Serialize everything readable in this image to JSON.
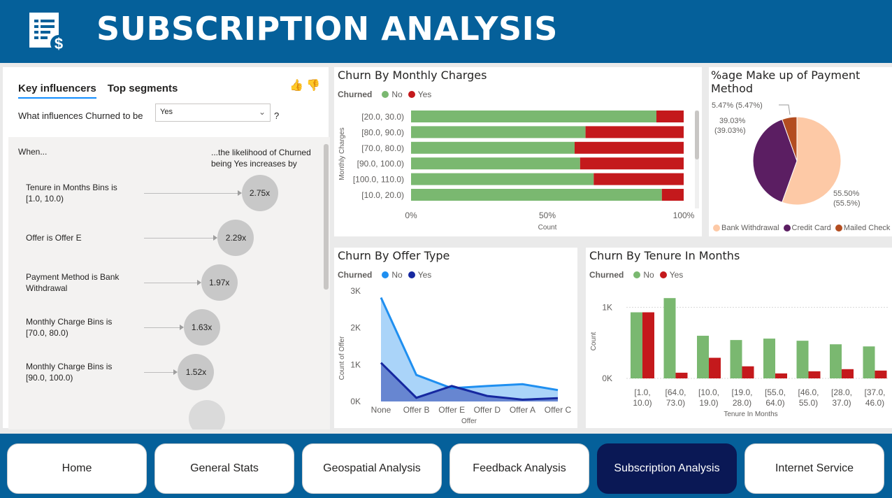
{
  "header": {
    "title": "SUBSCRIPTION ANALYSIS",
    "logo_icon": "receipt-dollar-icon"
  },
  "key_influencers": {
    "tabs": [
      {
        "label": "Key influencers",
        "active": true
      },
      {
        "label": "Top segments",
        "active": false
      }
    ],
    "question": "What influences Churned to be",
    "selected_value": "Yes",
    "question_mark": "?",
    "col_when": "When...",
    "col_likelihood": "...the likelihood of Churned being Yes increases by",
    "rows": [
      {
        "label": "Tenure in Months Bins is [1.0, 10.0)",
        "value": "2.75x",
        "factor": 2.75
      },
      {
        "label": "Offer is Offer E",
        "value": "2.29x",
        "factor": 2.29
      },
      {
        "label": "Payment Method is Bank Withdrawal",
        "value": "1.97x",
        "factor": 1.97
      },
      {
        "label": "Monthly Charge Bins is [70.0, 80.0)",
        "value": "1.63x",
        "factor": 1.63
      },
      {
        "label": "Monthly Charge Bins is [90.0, 100.0)",
        "value": "1.52x",
        "factor": 1.52
      }
    ]
  },
  "colors": {
    "no_green": "#7ab870",
    "yes_red": "#c4191c",
    "no_blue": "#1f8ff0",
    "yes_navy": "#1628a0",
    "bank": "#fdc9a6",
    "credit": "#5b1e62",
    "mailed": "#b34d20",
    "active_nav": "#0a1855"
  },
  "monthly_charges": {
    "title": "Churn By Monthly Charges",
    "legend_title": "Churned",
    "chart_data": {
      "type": "bar",
      "orientation": "horizontal-stacked-100",
      "categories": [
        "[20.0, 30.0)",
        "[80.0, 90.0)",
        "[70.0, 80.0)",
        "[90.0, 100.0)",
        "[100.0, 110.0)",
        "[10.0, 20.0)"
      ],
      "series": [
        {
          "name": "No",
          "values": [
            90,
            64,
            60,
            62,
            67,
            92
          ]
        },
        {
          "name": "Yes",
          "values": [
            10,
            36,
            40,
            38,
            33,
            8
          ]
        }
      ],
      "xticks": [
        "0%",
        "50%",
        "100%"
      ],
      "xlabel": "Count",
      "ylabel": "Monthly Charges",
      "xlim": [
        0,
        100
      ]
    }
  },
  "payment": {
    "title": "%age Make up of Payment Method",
    "chart_data": {
      "type": "pie",
      "slices": [
        {
          "name": "Bank Withdrawal",
          "value": 55.5,
          "label": "55.50%",
          "label2": "(55.5%)"
        },
        {
          "name": "Credit Card",
          "value": 39.03,
          "label": "39.03%",
          "label2": "(39.03%)"
        },
        {
          "name": "Mailed Check",
          "value": 5.47,
          "label": "5.47% (5.47%)",
          "label2": ""
        }
      ]
    }
  },
  "offer": {
    "title": "Churn By Offer Type",
    "legend_title": "Churned",
    "chart_data": {
      "type": "area",
      "categories": [
        "None",
        "Offer B",
        "Offer E",
        "Offer D",
        "Offer A",
        "Offer C"
      ],
      "series": [
        {
          "name": "No",
          "values": [
            2820,
            720,
            360,
            420,
            470,
            310
          ]
        },
        {
          "name": "Yes",
          "values": [
            1050,
            100,
            420,
            150,
            50,
            90
          ]
        }
      ],
      "yticks": [
        "0K",
        "1K",
        "2K",
        "3K"
      ],
      "ylim": [
        0,
        3000
      ],
      "xlabel": "Offer",
      "ylabel": "Count of Offer"
    }
  },
  "tenure": {
    "title": "Churn By Tenure In Months",
    "legend_title": "Churned",
    "chart_data": {
      "type": "bar",
      "categories": [
        [
          "[1.0,",
          "10.0)"
        ],
        [
          "[64.0,",
          "73.0)"
        ],
        [
          "[10.0,",
          "19.0)"
        ],
        [
          "[19.0,",
          "28.0)"
        ],
        [
          "[55.0,",
          "64.0)"
        ],
        [
          "[46.0,",
          "55.0)"
        ],
        [
          "[28.0,",
          "37.0)"
        ],
        [
          "[37.0,",
          "46.0)"
        ]
      ],
      "series": [
        {
          "name": "No",
          "values": [
            930,
            1130,
            600,
            540,
            560,
            530,
            480,
            450
          ]
        },
        {
          "name": "Yes",
          "values": [
            930,
            80,
            290,
            170,
            70,
            100,
            130,
            110
          ]
        }
      ],
      "yticks": [
        "0K",
        "1K"
      ],
      "ylim": [
        0,
        1250
      ],
      "xlabel": "Tenure In Months",
      "ylabel": "Count"
    }
  },
  "nav": [
    {
      "label": "Home",
      "active": false
    },
    {
      "label": "General Stats",
      "active": false
    },
    {
      "label": "Geospatial Analysis",
      "active": false
    },
    {
      "label": "Feedback Analysis",
      "active": false
    },
    {
      "label": "Subscription Analysis",
      "active": true
    },
    {
      "label": "Internet Service",
      "active": false
    }
  ]
}
